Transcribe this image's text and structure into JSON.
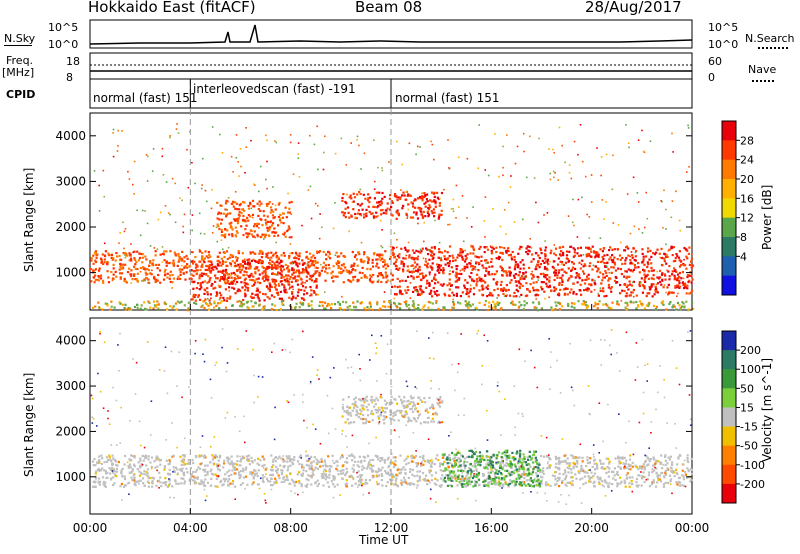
{
  "header": {
    "station": "Hokkaido East (fitACF)",
    "beam": "Beam 08",
    "date": "28/Aug/2017"
  },
  "top_panels": {
    "nsky_label": "N.Sky",
    "nsky_ticks": [
      "10^5",
      "10^0"
    ],
    "nsearch_label": "N.Search",
    "nsearch_ticks": [
      "10^5",
      "10^0"
    ],
    "freq_label_1": "Freq.",
    "freq_label_2": "[MHz]",
    "freq_ticks": [
      "18",
      "8"
    ],
    "nave_label": "Nave",
    "nave_ticks": [
      "60",
      "0"
    ],
    "cpid_label": "CPID",
    "cpid_segments": [
      {
        "label": "normal (fast) 151",
        "start_hour": 0,
        "end_hour": 4
      },
      {
        "label": "interleovedscan (fast) -191",
        "start_hour": 4,
        "end_hour": 12
      },
      {
        "label": "normal (fast) 151",
        "start_hour": 12,
        "end_hour": 24
      }
    ]
  },
  "chart_data": [
    {
      "type": "heatmap",
      "title": "",
      "ylabel": "Slant Range [km]",
      "xlabel": "",
      "xlim": [
        0,
        24
      ],
      "ylim": [
        180,
        4500
      ],
      "yticks": [
        "1000",
        "2000",
        "3000",
        "4000"
      ],
      "colorbar_label": "Power [dB]",
      "colorbar_ticks": [
        "28",
        "24",
        "20",
        "16",
        "12",
        "8",
        "4"
      ],
      "colorbar_colors": [
        "#e8000b",
        "#ff3a00",
        "#ff7a00",
        "#ffb000",
        "#f0d800",
        "#5aa64a",
        "#2a7a64",
        "#1f5fb0",
        "#1010e0"
      ],
      "regions": [
        {
          "x": [
            0,
            12
          ],
          "y": [
            800,
            1500
          ],
          "level": 24
        },
        {
          "x": [
            4,
            9
          ],
          "y": [
            400,
            1300
          ],
          "level": 28
        },
        {
          "x": [
            12,
            24
          ],
          "y": [
            500,
            1600
          ],
          "level": 28
        },
        {
          "x": [
            10,
            14
          ],
          "y": [
            2200,
            2800
          ],
          "level": 28
        },
        {
          "x": [
            5,
            8
          ],
          "y": [
            1800,
            2600
          ],
          "level": 22
        },
        {
          "x": [
            0,
            24
          ],
          "y": [
            200,
            400
          ],
          "level": 18
        }
      ]
    },
    {
      "type": "heatmap",
      "title": "",
      "ylabel": "Slant Range [km]",
      "xlabel": "Time UT",
      "xlim": [
        0,
        24
      ],
      "ylim": [
        180,
        4500
      ],
      "xticks": [
        "00:00",
        "04:00",
        "08:00",
        "12:00",
        "16:00",
        "20:00",
        "00:00"
      ],
      "yticks": [
        "1000",
        "2000",
        "3000",
        "4000"
      ],
      "colorbar_label": "Velocity [m s^-1]",
      "colorbar_ticks": [
        "200",
        "100",
        "50",
        "15",
        "-15",
        "-50",
        "-100",
        "-200"
      ],
      "colorbar_colors": [
        "#1a2aa8",
        "#2a7a64",
        "#3a9a3a",
        "#7ad03a",
        "#c0c0c0",
        "#f0c000",
        "#ff8000",
        "#ff4a00",
        "#e8000b"
      ],
      "regions": [
        {
          "x": [
            0,
            24
          ],
          "y": [
            800,
            1500
          ],
          "velocity": 0
        },
        {
          "x": [
            14,
            18
          ],
          "y": [
            800,
            1600
          ],
          "velocity": 30
        },
        {
          "x": [
            10,
            14
          ],
          "y": [
            2200,
            2800
          ],
          "velocity": 0
        }
      ]
    }
  ]
}
